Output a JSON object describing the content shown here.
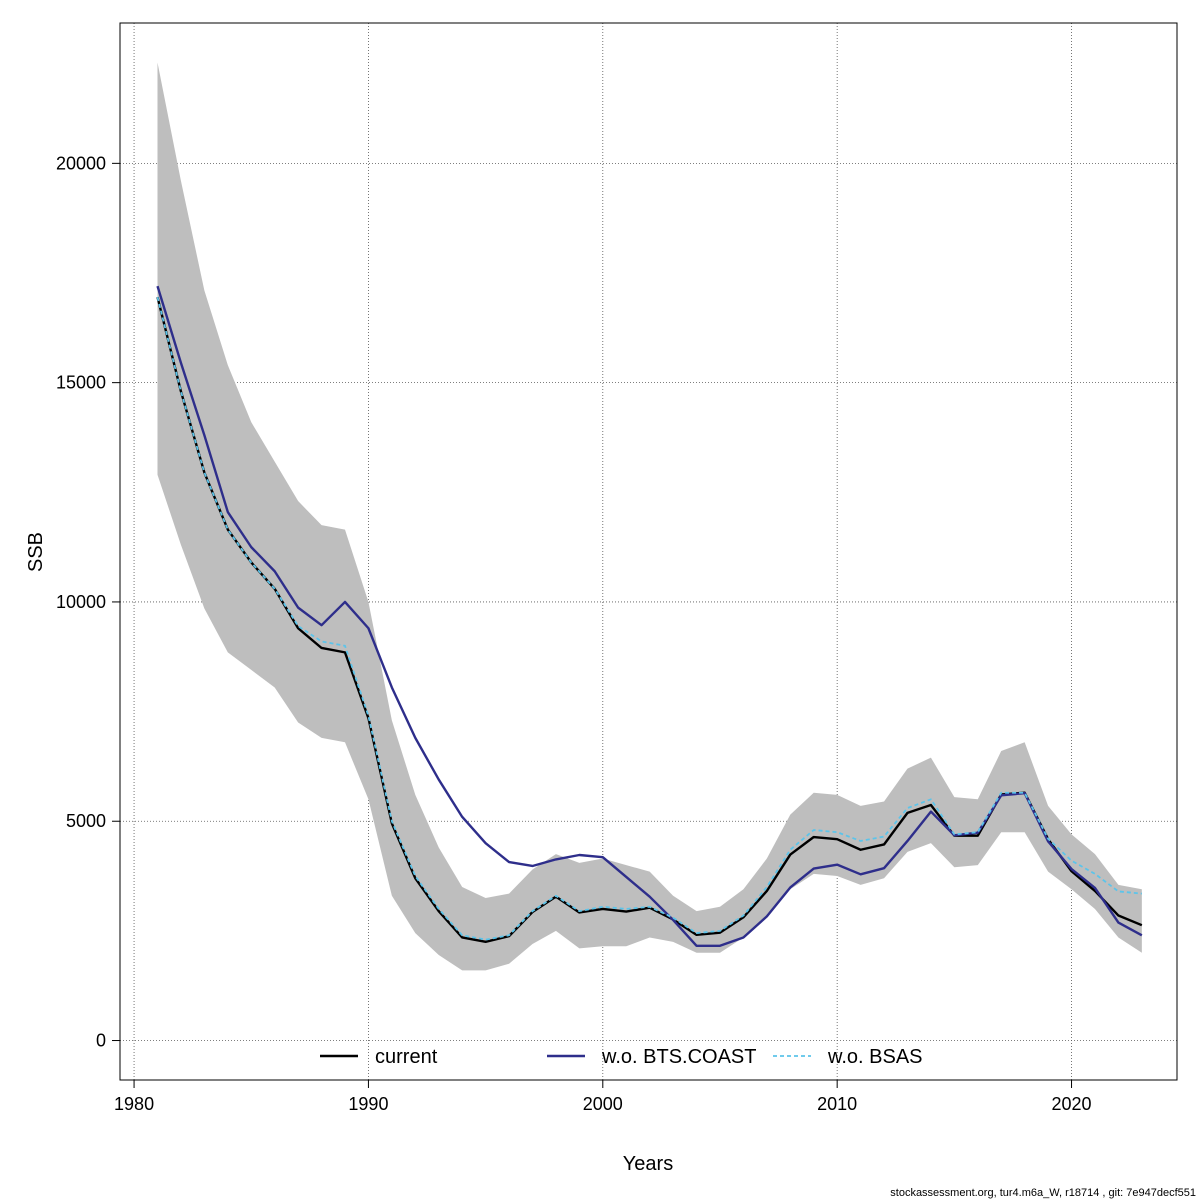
{
  "chart_data": {
    "type": "line",
    "xlabel": "Years",
    "ylabel": "SSB",
    "xlim": [
      1979.4,
      2024.5
    ],
    "ylim": [
      -900,
      23200
    ],
    "xticks": [
      1980,
      1990,
      2000,
      2010,
      2020
    ],
    "yticks": [
      0,
      5000,
      10000,
      15000,
      20000
    ],
    "x_tick_labels": [
      "1980",
      "1990",
      "2000",
      "2010",
      "2020"
    ],
    "y_tick_labels": [
      "0",
      "5000",
      "10000",
      "15000",
      "20000"
    ],
    "grid": true,
    "legend_position": "bottom",
    "x": [
      1981,
      1982,
      1983,
      1984,
      1985,
      1986,
      1987,
      1988,
      1989,
      1990,
      1991,
      1992,
      1993,
      1994,
      1995,
      1996,
      1997,
      1998,
      1999,
      2000,
      2001,
      2002,
      2003,
      2004,
      2005,
      2006,
      2007,
      2008,
      2009,
      2010,
      2011,
      2012,
      2013,
      2014,
      2015,
      2016,
      2017,
      2018,
      2019,
      2020,
      2021,
      2022,
      2023
    ],
    "band": {
      "color": "#bebebe",
      "upper": [
        22300,
        19600,
        17100,
        15400,
        14100,
        13200,
        12300,
        11750,
        11650,
        10000,
        7300,
        5600,
        4400,
        3500,
        3250,
        3350,
        3900,
        4250,
        4050,
        4150,
        4000,
        3850,
        3300,
        2950,
        3050,
        3450,
        4150,
        5150,
        5650,
        5600,
        5350,
        5450,
        6200,
        6450,
        5550,
        5500,
        6600,
        6800,
        5350,
        4700,
        4250,
        3550,
        3450
      ],
      "lower": [
        12900,
        11300,
        9850,
        8850,
        8450,
        8050,
        7250,
        6900,
        6800,
        5500,
        3300,
        2450,
        1950,
        1600,
        1600,
        1750,
        2200,
        2500,
        2100,
        2150,
        2150,
        2350,
        2250,
        2000,
        2000,
        2350,
        2800,
        3450,
        3800,
        3750,
        3550,
        3700,
        4300,
        4500,
        3950,
        4000,
        4750,
        4750,
        3850,
        3450,
        3000,
        2350,
        2000
      ]
    },
    "series": [
      {
        "name": "current",
        "color": "#000000",
        "dash": "",
        "width": 2.4,
        "values": [
          16950,
          14800,
          12950,
          11650,
          10900,
          10300,
          9400,
          8950,
          8850,
          7350,
          4950,
          3700,
          2950,
          2350,
          2250,
          2380,
          2930,
          3280,
          2920,
          3000,
          2940,
          3030,
          2760,
          2410,
          2460,
          2810,
          3410,
          4240,
          4640,
          4590,
          4350,
          4470,
          5190,
          5370,
          4670,
          4670,
          5610,
          5650,
          4590,
          3860,
          3410,
          2850,
          2630
        ]
      },
      {
        "name": "w.o. BTS.COAST",
        "color": "#2e2e8b",
        "dash": "",
        "width": 2.4,
        "values": [
          17200,
          15450,
          13800,
          12050,
          11250,
          10700,
          9870,
          9470,
          10000,
          9400,
          8050,
          6900,
          5950,
          5100,
          4500,
          4070,
          3980,
          4130,
          4230,
          4180,
          3730,
          3280,
          2750,
          2160,
          2160,
          2350,
          2830,
          3490,
          3920,
          4010,
          3790,
          3930,
          4550,
          5220,
          4680,
          4740,
          5590,
          5640,
          4540,
          3910,
          3480,
          2690,
          2400
        ]
      },
      {
        "name": "w.o. BSAS",
        "color": "#5cc4ea",
        "dash": "4,3",
        "width": 1.8,
        "values": [
          16950,
          14800,
          12950,
          11650,
          10900,
          10300,
          9450,
          9100,
          9000,
          7400,
          5000,
          3750,
          3000,
          2400,
          2300,
          2400,
          2950,
          3300,
          2950,
          3050,
          3000,
          3050,
          2800,
          2450,
          2500,
          2850,
          3500,
          4350,
          4800,
          4750,
          4550,
          4650,
          5300,
          5500,
          4700,
          4750,
          5650,
          5650,
          4600,
          4100,
          3800,
          3400,
          3350
        ]
      }
    ]
  },
  "footer": "stockassessment.org, tur4.m6a_W, r18714 , git: 7e947decf551"
}
